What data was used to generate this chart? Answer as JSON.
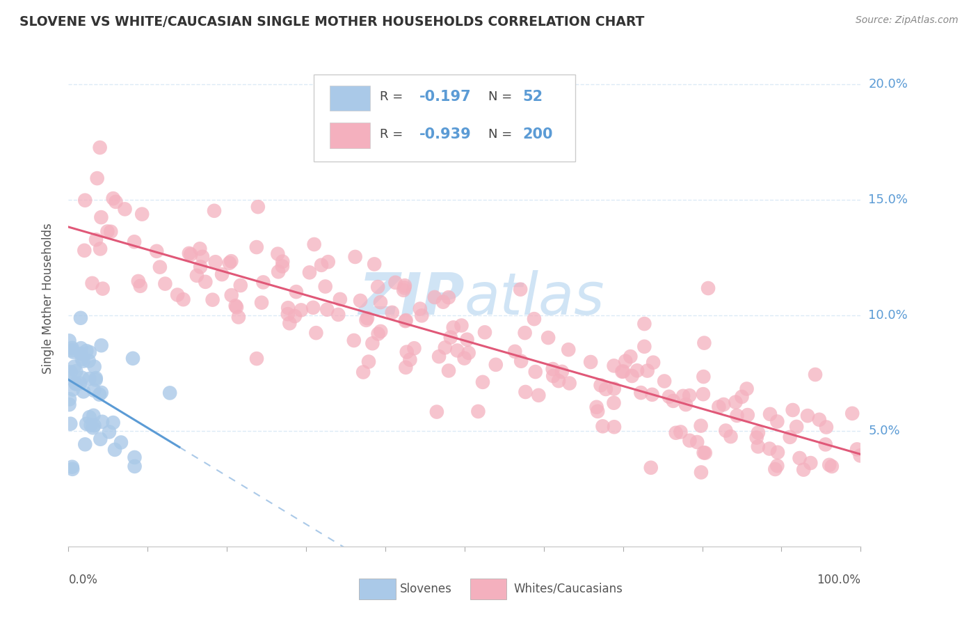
{
  "title": "SLOVENE VS WHITE/CAUCASIAN SINGLE MOTHER HOUSEHOLDS CORRELATION CHART",
  "source": "Source: ZipAtlas.com",
  "ylabel": "Single Mother Households",
  "legend_slovenes": "Slovenes",
  "legend_whites": "Whites/Caucasians",
  "slovene_R": "-0.197",
  "slovene_N": "52",
  "white_R": "-0.939",
  "white_N": "200",
  "slovene_color": "#aac9e8",
  "slovene_line_color": "#5b9bd5",
  "white_color": "#f4b0be",
  "white_line_color": "#e05878",
  "dashed_line_color": "#aac9e8",
  "watermark_zip": "ZIP",
  "watermark_atlas": "atlas",
  "watermark_color": "#d0e4f5",
  "y_tick_vals": [
    0.05,
    0.1,
    0.15,
    0.2
  ],
  "y_tick_labels": [
    "5.0%",
    "10.0%",
    "15.0%",
    "20.0%"
  ],
  "y_tick_color": "#5b9bd5",
  "background_color": "#ffffff",
  "grid_color": "#d8e8f5",
  "title_color": "#333333",
  "source_color": "#888888",
  "label_color": "#555555",
  "xlim": [
    0,
    100
  ],
  "ylim": [
    0,
    0.215
  ]
}
